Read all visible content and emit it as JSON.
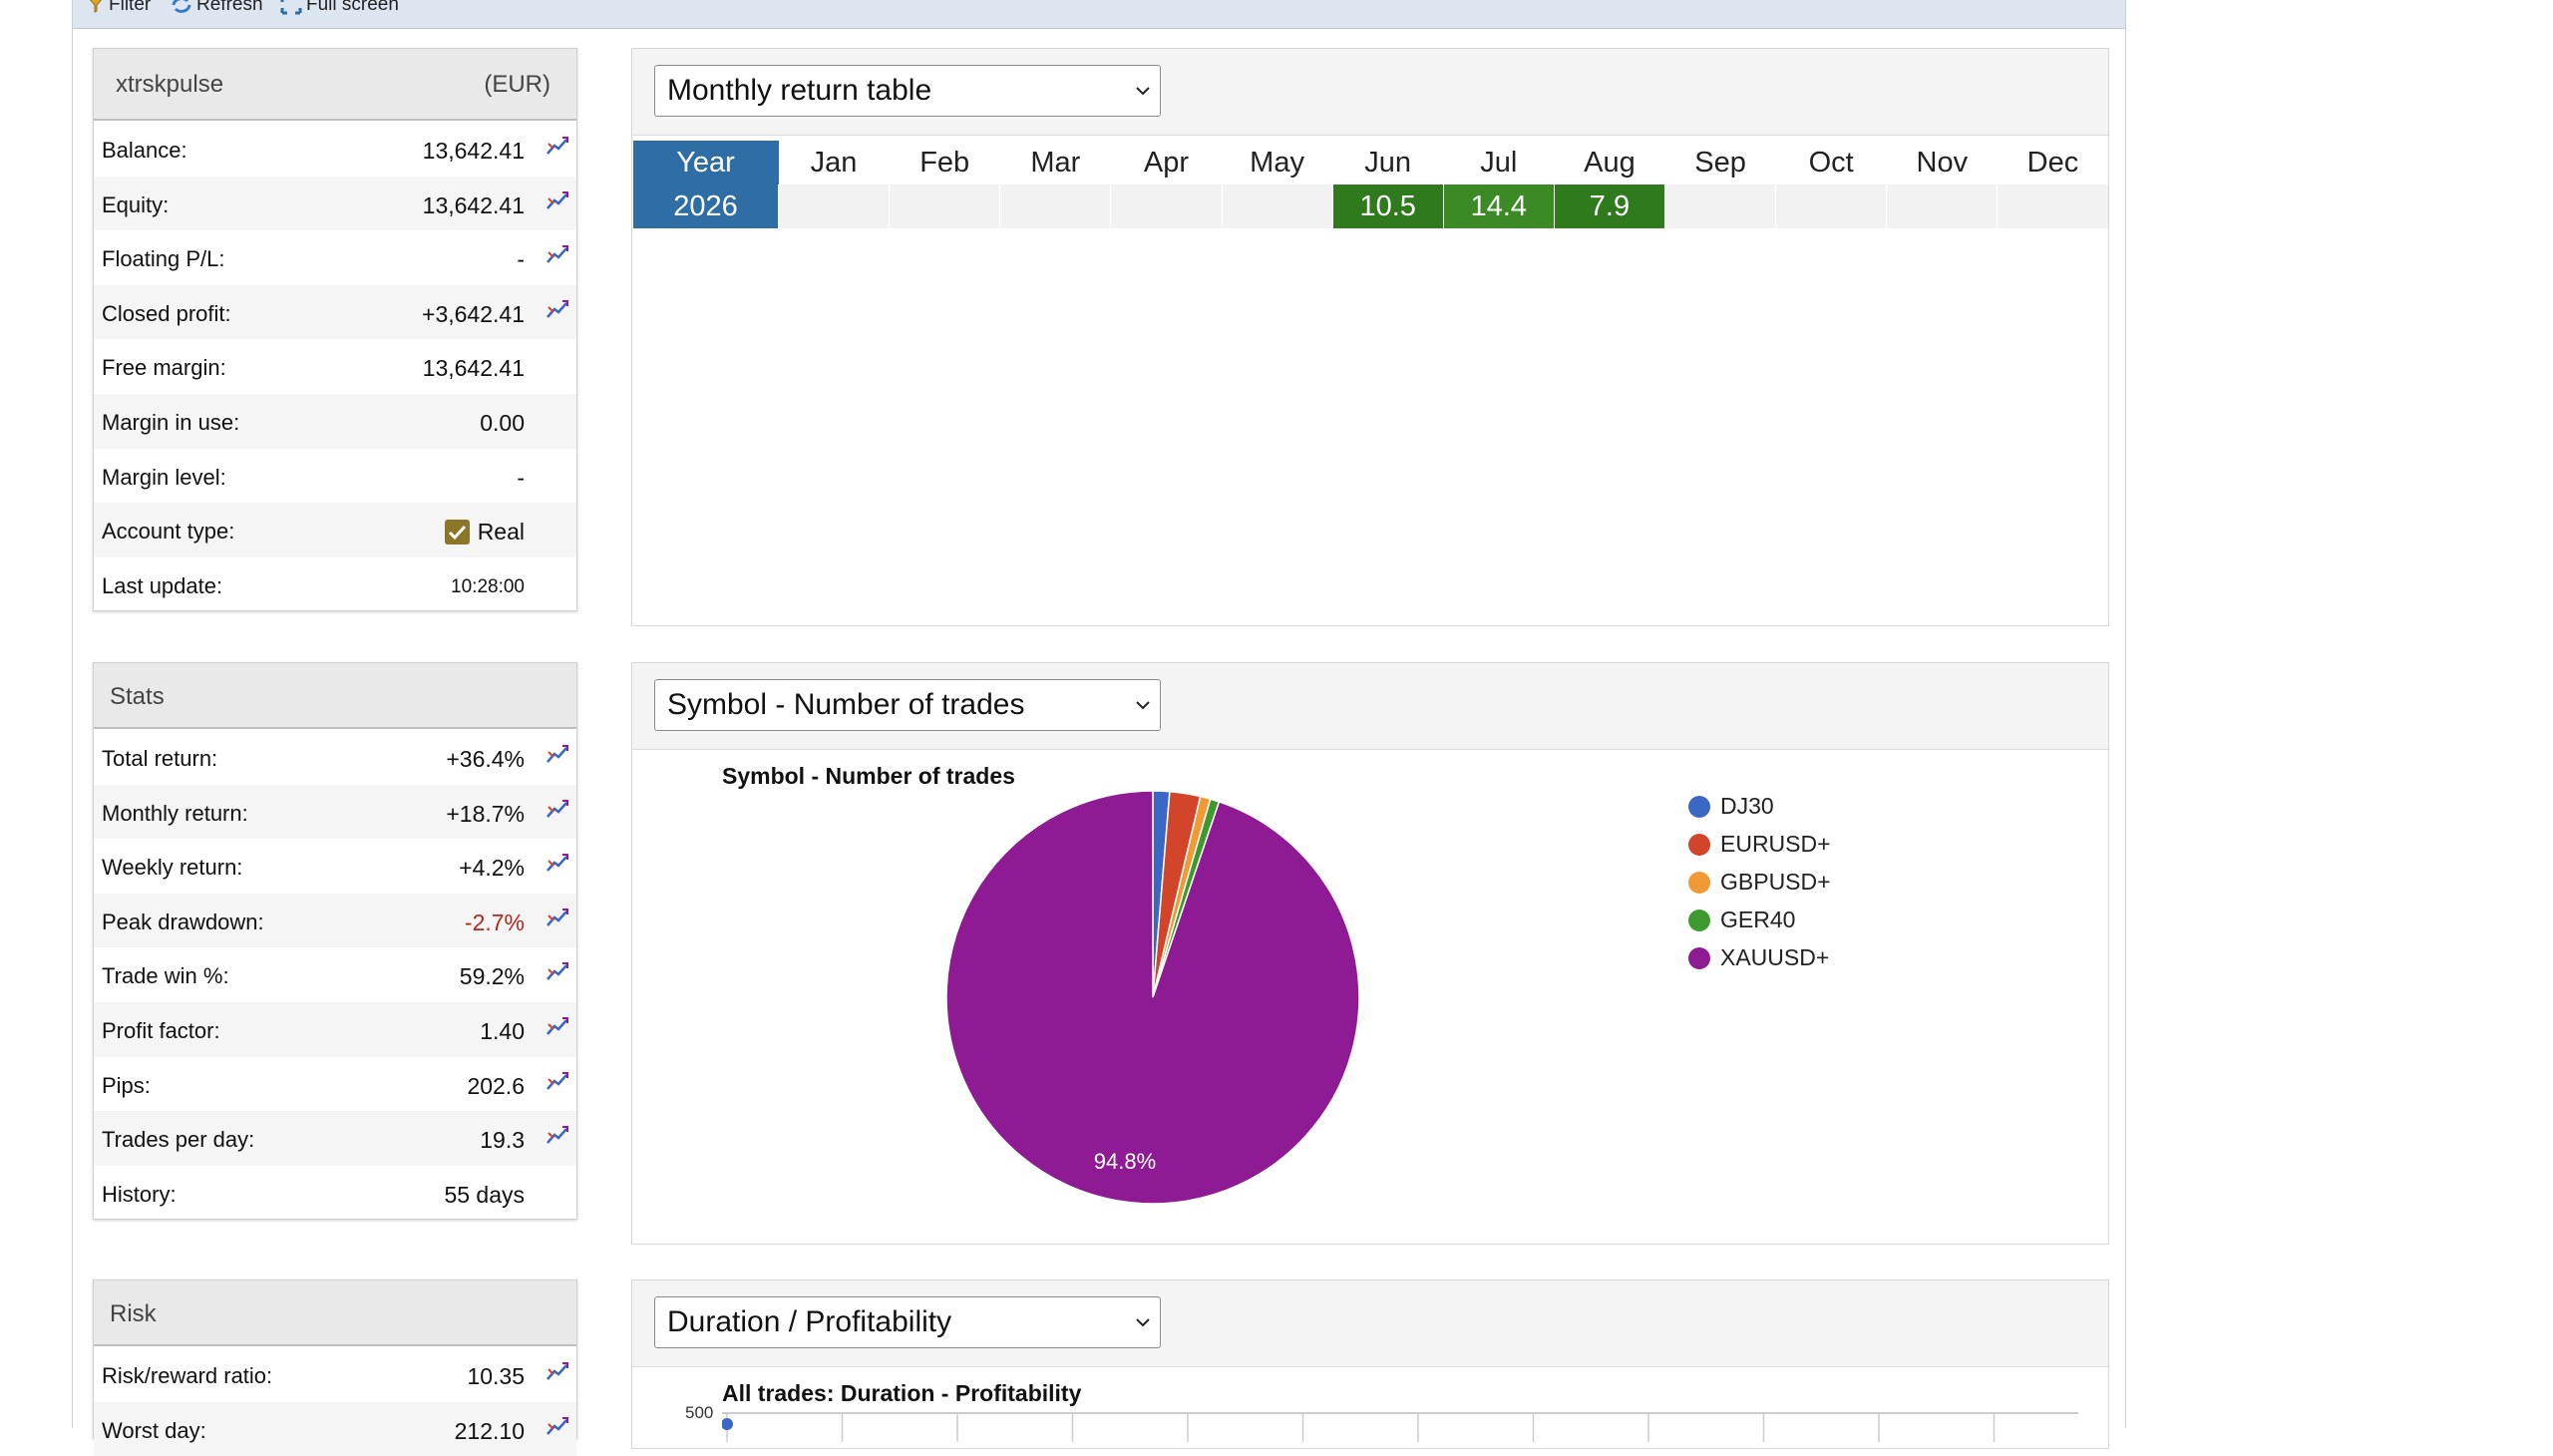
{
  "toolbar": {
    "filter_label": "Filter",
    "refresh_label": "Refresh",
    "fullscreen_label": "Full screen"
  },
  "account": {
    "name": "xtrskpulse",
    "currency": "(EUR)",
    "rows": [
      {
        "label": "Balance:",
        "value": "13,642.41"
      },
      {
        "label": "Equity:",
        "value": "13,642.41"
      },
      {
        "label": "Floating P/L:",
        "value": "-"
      },
      {
        "label": "Closed profit:",
        "value": "+3,642.41"
      },
      {
        "label": "Free margin:",
        "value": "13,642.41"
      },
      {
        "label": "Margin in use:",
        "value": "0.00"
      },
      {
        "label": "Margin level:",
        "value": "-"
      },
      {
        "label": "Account type:",
        "value": "Real"
      },
      {
        "label": "Last update:",
        "value": "10:28:00"
      }
    ]
  },
  "stats": {
    "title": "Stats",
    "rows": [
      {
        "label": "Total return:",
        "value": "+36.4%"
      },
      {
        "label": "Monthly return:",
        "value": "+18.7%"
      },
      {
        "label": "Weekly return:",
        "value": "+4.2%"
      },
      {
        "label": "Peak drawdown:",
        "value": "-2.7%"
      },
      {
        "label": "Trade win %:",
        "value": "59.2%"
      },
      {
        "label": "Profit factor:",
        "value": "1.40"
      },
      {
        "label": "Pips:",
        "value": "202.6"
      },
      {
        "label": "Trades per day:",
        "value": "19.3"
      },
      {
        "label": "History:",
        "value": "55 days"
      }
    ]
  },
  "risk": {
    "title": "Risk",
    "rows": [
      {
        "label": "Risk/reward ratio:",
        "value": "10.35"
      },
      {
        "label": "Worst day:",
        "value": "212.10"
      }
    ]
  },
  "monthly_panel": {
    "selected": "Monthly return table",
    "header": [
      "Year",
      "Jan",
      "Feb",
      "Mar",
      "Apr",
      "May",
      "Jun",
      "Jul",
      "Aug",
      "Sep",
      "Oct",
      "Nov",
      "Dec"
    ],
    "rows": [
      {
        "year": "2026",
        "months": [
          "",
          "",
          "",
          "",
          "",
          "10.5",
          "14.4",
          "7.9",
          "",
          "",
          "",
          ""
        ]
      }
    ]
  },
  "symbol_panel": {
    "selected": "Symbol - Number of trades"
  },
  "duration_panel": {
    "selected": "Duration / Profitability",
    "chart_title": "All trades: Duration - Profitability",
    "y_tick_top": "500"
  },
  "colors": {
    "dj30": "#3a66c4",
    "eurusd": "#d2452a",
    "gbpusd": "#ef9a34",
    "ger40": "#3e9a2f",
    "xauusd": "#8e1b93",
    "year_header": "#2f6ea5",
    "positive_month": "#2f7a1c"
  },
  "chart_data": [
    {
      "type": "pie",
      "title": "Symbol - Number of trades",
      "slices": [
        {
          "label": "DJ30",
          "value": 1.3
        },
        {
          "label": "EURUSD+",
          "value": 2.4
        },
        {
          "label": "GBPUSD+",
          "value": 0.8
        },
        {
          "label": "GER40",
          "value": 0.7
        },
        {
          "label": "XAUUSD+",
          "value": 94.8
        }
      ],
      "data_labels": [
        "94.8%"
      ],
      "legend": "right"
    },
    {
      "type": "scatter",
      "title": "All trades: Duration - Profitability",
      "y_ticks": [
        "500"
      ],
      "grid": true
    }
  ]
}
